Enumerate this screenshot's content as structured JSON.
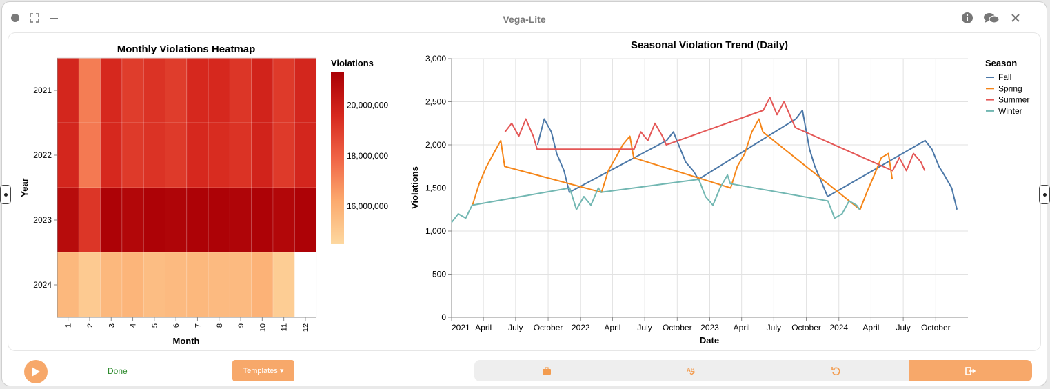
{
  "window": {
    "title": "Vega-Lite"
  },
  "footer": {
    "status": "Done",
    "templates_label": "Templates ▾"
  },
  "heatmap": {
    "chart_data": {
      "type": "heatmap",
      "title": "Monthly Violations Heatmap",
      "xlabel": "Month",
      "ylabel": "Year",
      "x_categories": [
        "1",
        "2",
        "3",
        "4",
        "5",
        "6",
        "7",
        "8",
        "9",
        "10",
        "11",
        "12"
      ],
      "y_categories": [
        "2021",
        "2022",
        "2023",
        "2024"
      ],
      "legend_title": "Violations",
      "legend_ticks": [
        "20,000,000",
        "18,000,000",
        "16,000,000"
      ],
      "legend_tick_values": [
        20000000,
        18000000,
        16000000
      ],
      "domain": [
        14500000,
        21300000
      ],
      "values": [
        [
          19700000,
          17300000,
          19600000,
          19000000,
          19300000,
          19000000,
          19600000,
          19600000,
          19200000,
          19800000,
          19100000,
          19700000
        ],
        [
          19700000,
          17400000,
          19600000,
          19100000,
          19300000,
          19100000,
          19600000,
          19500000,
          19300000,
          19800000,
          19100000,
          19700000
        ],
        [
          20800000,
          19200000,
          21200000,
          21000000,
          21200000,
          21100000,
          21200000,
          21200000,
          21100000,
          21200000,
          21000000,
          21200000
        ],
        [
          15700000,
          15000000,
          15700000,
          15800000,
          15500000,
          15600000,
          15700000,
          15600000,
          15600000,
          15900000,
          14900000,
          null
        ]
      ]
    }
  },
  "trend": {
    "chart_data": {
      "type": "line",
      "title": "Seasonal Violation Trend (Daily)",
      "xlabel": "Date",
      "ylabel": "Violations",
      "ylim": [
        0,
        3000
      ],
      "yticks": [
        "0",
        "500",
        "1,000",
        "1,500",
        "2,000",
        "2,500",
        "3,000"
      ],
      "xticks": [
        "2021",
        "April",
        "July",
        "October",
        "2022",
        "April",
        "July",
        "October",
        "2023",
        "April",
        "July",
        "October",
        "2024",
        "April",
        "July",
        "October"
      ],
      "xdomain": [
        "2021-01-01",
        "2024-12-31"
      ],
      "legend_title": "Season",
      "series": [
        {
          "name": "Fall",
          "color": "#4c78a8",
          "points": [
            [
              "2021-09-01",
              2000
            ],
            [
              "2021-09-20",
              2300
            ],
            [
              "2021-10-10",
              2150
            ],
            [
              "2021-10-25",
              1900
            ],
            [
              "2021-11-15",
              1700
            ],
            [
              "2021-11-30",
              1450
            ],
            [
              "2022-09-01",
              2050
            ],
            [
              "2022-09-20",
              2150
            ],
            [
              "2022-10-10",
              1950
            ],
            [
              "2022-10-25",
              1800
            ],
            [
              "2022-11-15",
              1700
            ],
            [
              "2022-11-30",
              1600
            ],
            [
              "2023-09-01",
              2300
            ],
            [
              "2023-09-20",
              2400
            ],
            [
              "2023-10-10",
              1950
            ],
            [
              "2023-10-25",
              1750
            ],
            [
              "2023-11-15",
              1550
            ],
            [
              "2023-11-30",
              1400
            ],
            [
              "2024-09-01",
              2050
            ],
            [
              "2024-09-20",
              1950
            ],
            [
              "2024-10-10",
              1750
            ],
            [
              "2024-10-25",
              1650
            ],
            [
              "2024-11-15",
              1500
            ],
            [
              "2024-11-30",
              1250
            ]
          ]
        },
        {
          "name": "Spring",
          "color": "#f58518",
          "points": [
            [
              "2021-03-01",
              1300
            ],
            [
              "2021-03-20",
              1550
            ],
            [
              "2021-04-10",
              1750
            ],
            [
              "2021-04-30",
              1900
            ],
            [
              "2021-05-20",
              2050
            ],
            [
              "2021-05-31",
              1750
            ],
            [
              "2022-03-01",
              1450
            ],
            [
              "2022-03-20",
              1700
            ],
            [
              "2022-04-10",
              1850
            ],
            [
              "2022-04-30",
              2000
            ],
            [
              "2022-05-20",
              2100
            ],
            [
              "2022-05-31",
              1850
            ],
            [
              "2023-03-01",
              1500
            ],
            [
              "2023-03-20",
              1750
            ],
            [
              "2023-04-10",
              1900
            ],
            [
              "2023-04-30",
              2150
            ],
            [
              "2023-05-20",
              2300
            ],
            [
              "2023-05-31",
              2150
            ],
            [
              "2024-03-01",
              1250
            ],
            [
              "2024-03-20",
              1450
            ],
            [
              "2024-04-10",
              1650
            ],
            [
              "2024-04-30",
              1850
            ],
            [
              "2024-05-20",
              1900
            ],
            [
              "2024-05-31",
              1600
            ]
          ]
        },
        {
          "name": "Summer",
          "color": "#e45756",
          "points": [
            [
              "2021-06-01",
              2150
            ],
            [
              "2021-06-20",
              2250
            ],
            [
              "2021-07-10",
              2100
            ],
            [
              "2021-07-30",
              2300
            ],
            [
              "2021-08-20",
              2100
            ],
            [
              "2021-08-31",
              1950
            ],
            [
              "2022-06-01",
              1950
            ],
            [
              "2022-06-20",
              2150
            ],
            [
              "2022-07-10",
              2050
            ],
            [
              "2022-07-30",
              2250
            ],
            [
              "2022-08-20",
              2100
            ],
            [
              "2022-08-31",
              2000
            ],
            [
              "2023-06-01",
              2400
            ],
            [
              "2023-06-20",
              2550
            ],
            [
              "2023-07-10",
              2350
            ],
            [
              "2023-07-30",
              2500
            ],
            [
              "2023-08-20",
              2300
            ],
            [
              "2023-08-31",
              2200
            ],
            [
              "2024-06-01",
              1700
            ],
            [
              "2024-06-20",
              1850
            ],
            [
              "2024-07-10",
              1700
            ],
            [
              "2024-07-30",
              1900
            ],
            [
              "2024-08-20",
              1800
            ],
            [
              "2024-08-31",
              1700
            ]
          ]
        },
        {
          "name": "Winter",
          "color": "#72b7b2",
          "points": [
            [
              "2021-01-01",
              1100
            ],
            [
              "2021-01-20",
              1200
            ],
            [
              "2021-02-10",
              1150
            ],
            [
              "2021-02-28",
              1300
            ],
            [
              "2021-12-01",
              1500
            ],
            [
              "2021-12-20",
              1250
            ],
            [
              "2022-01-10",
              1400
            ],
            [
              "2022-01-30",
              1300
            ],
            [
              "2022-02-20",
              1500
            ],
            [
              "2022-02-28",
              1450
            ],
            [
              "2022-12-01",
              1600
            ],
            [
              "2022-12-20",
              1400
            ],
            [
              "2023-01-10",
              1300
            ],
            [
              "2023-01-30",
              1500
            ],
            [
              "2023-02-20",
              1650
            ],
            [
              "2023-02-28",
              1550
            ],
            [
              "2023-12-01",
              1350
            ],
            [
              "2023-12-20",
              1150
            ],
            [
              "2024-01-10",
              1200
            ],
            [
              "2024-01-30",
              1350
            ],
            [
              "2024-02-20",
              1300
            ],
            [
              "2024-02-29",
              1250
            ]
          ]
        }
      ]
    }
  }
}
